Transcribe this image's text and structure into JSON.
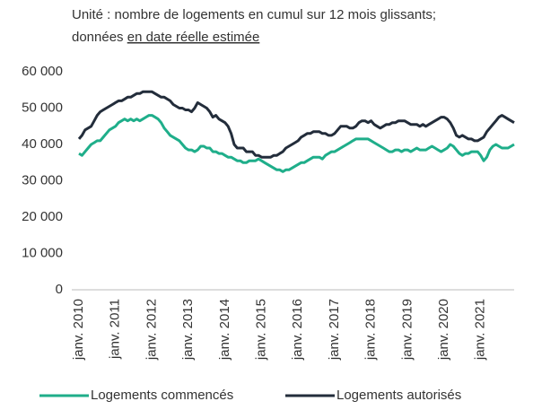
{
  "chart_data": {
    "type": "line",
    "subtitle": {
      "line1": "Unité : nombre de logements en cumul sur 12 mois glissants;",
      "line2": "données",
      "link": "en date réelle estimée"
    },
    "categories": [
      "janv. 2010",
      null,
      null,
      null,
      null,
      null,
      null,
      null,
      null,
      null,
      null,
      null,
      "janv. 2011",
      null,
      null,
      null,
      null,
      null,
      null,
      null,
      null,
      null,
      null,
      null,
      "janv. 2012",
      null,
      null,
      null,
      null,
      null,
      null,
      null,
      null,
      null,
      null,
      null,
      "janv. 2013",
      null,
      null,
      null,
      null,
      null,
      null,
      null,
      null,
      null,
      null,
      null,
      "janv. 2014",
      null,
      null,
      null,
      null,
      null,
      null,
      null,
      null,
      null,
      null,
      null,
      "janv. 2015",
      null,
      null,
      null,
      null,
      null,
      null,
      null,
      null,
      null,
      null,
      null,
      "janv. 2016",
      null,
      null,
      null,
      null,
      null,
      null,
      null,
      null,
      null,
      null,
      null,
      "janv. 2017",
      null,
      null,
      null,
      null,
      null,
      null,
      null,
      null,
      null,
      null,
      null,
      "janv. 2018",
      null,
      null,
      null,
      null,
      null,
      null,
      null,
      null,
      null,
      null,
      null,
      "janv. 2019",
      null,
      null,
      null,
      null,
      null,
      null,
      null,
      null,
      null,
      null,
      null,
      "janv. 2020",
      null,
      null,
      null,
      null,
      null,
      null,
      null,
      null,
      null,
      null,
      null,
      "janv. 2021",
      null,
      null,
      null,
      null,
      null,
      null,
      null,
      null,
      null,
      null,
      null
    ],
    "series": [
      {
        "name": "Logements commencés",
        "color": "#1fae8a",
        "values": [
          37500,
          37000,
          38000,
          39000,
          40000,
          40500,
          41000,
          41000,
          42000,
          43000,
          44000,
          44500,
          45000,
          46000,
          46500,
          47000,
          46500,
          47000,
          46500,
          47000,
          46500,
          47000,
          47500,
          48000,
          48000,
          47500,
          47000,
          46000,
          44500,
          43500,
          42500,
          42000,
          41500,
          41000,
          40000,
          39000,
          38500,
          38500,
          38000,
          38500,
          39500,
          39500,
          39000,
          39000,
          38000,
          38000,
          37500,
          37500,
          37000,
          36500,
          36500,
          36000,
          35500,
          35500,
          35000,
          35000,
          35500,
          35500,
          35500,
          36000,
          35500,
          35000,
          34500,
          34000,
          33500,
          33000,
          33000,
          32500,
          33000,
          33000,
          33500,
          34000,
          34500,
          35000,
          35000,
          35500,
          36000,
          36500,
          36500,
          36500,
          36000,
          37000,
          37500,
          38000,
          38000,
          38500,
          39000,
          39500,
          40000,
          40500,
          41000,
          41500,
          41500,
          41500,
          41500,
          41500,
          41000,
          40500,
          40000,
          39500,
          39000,
          38500,
          38000,
          38000,
          38500,
          38500,
          38000,
          38500,
          38500,
          38000,
          38500,
          39000,
          38500,
          38500,
          38500,
          39000,
          39500,
          39000,
          38500,
          38000,
          38500,
          39000,
          40000,
          39500,
          38500,
          37500,
          37000,
          37500,
          37500,
          38000,
          38000,
          38000,
          37000,
          35500,
          36500,
          38500,
          39500,
          40000,
          39500,
          39000,
          39000,
          39000,
          39500,
          40000
        ]
      },
      {
        "name": "Logements autorisés",
        "color": "#232d3b",
        "values": [
          41500,
          42500,
          44000,
          44500,
          45000,
          46500,
          48000,
          49000,
          49500,
          50000,
          50500,
          51000,
          51500,
          52000,
          52000,
          52500,
          53000,
          53000,
          53500,
          54000,
          54000,
          54500,
          54500,
          54500,
          54500,
          54000,
          53500,
          53000,
          53000,
          52500,
          52000,
          51000,
          50500,
          50000,
          50000,
          49500,
          49500,
          49000,
          50000,
          51500,
          51000,
          50500,
          50000,
          49000,
          47500,
          48000,
          47000,
          46500,
          46000,
          45000,
          43000,
          40000,
          39000,
          39000,
          39000,
          38000,
          38000,
          38000,
          37000,
          37000,
          36500,
          36500,
          36500,
          36500,
          37000,
          37000,
          37500,
          38000,
          39000,
          39500,
          40000,
          40500,
          41000,
          42000,
          42500,
          43000,
          43000,
          43500,
          43500,
          43500,
          43000,
          43000,
          42500,
          42500,
          43000,
          44000,
          45000,
          45000,
          45000,
          44500,
          44500,
          45000,
          46000,
          46500,
          46500,
          46000,
          46500,
          45500,
          45000,
          44500,
          45000,
          45500,
          45500,
          46000,
          46000,
          46500,
          46500,
          46500,
          46000,
          45500,
          45500,
          45500,
          45000,
          45500,
          45000,
          45500,
          46000,
          46500,
          47000,
          47500,
          47500,
          47000,
          46000,
          44500,
          42500,
          42000,
          42500,
          42000,
          41500,
          41500,
          41000,
          41000,
          41500,
          42000,
          43500,
          44500,
          45500,
          46500,
          47500,
          48000,
          47500,
          47000,
          46500,
          46000
        ]
      }
    ],
    "ylim": [
      0,
      60000
    ],
    "yticks": [
      0,
      {
        "value": 10000,
        "label": "10 000"
      },
      {
        "value": 20000,
        "label": "20 000"
      },
      {
        "value": 30000,
        "label": "30 000"
      },
      {
        "value": 40000,
        "label": "40 000"
      },
      {
        "value": 50000,
        "label": "50 000"
      },
      {
        "value": 60000,
        "label": "60 000"
      }
    ],
    "grid": false,
    "legend": "bottom"
  }
}
